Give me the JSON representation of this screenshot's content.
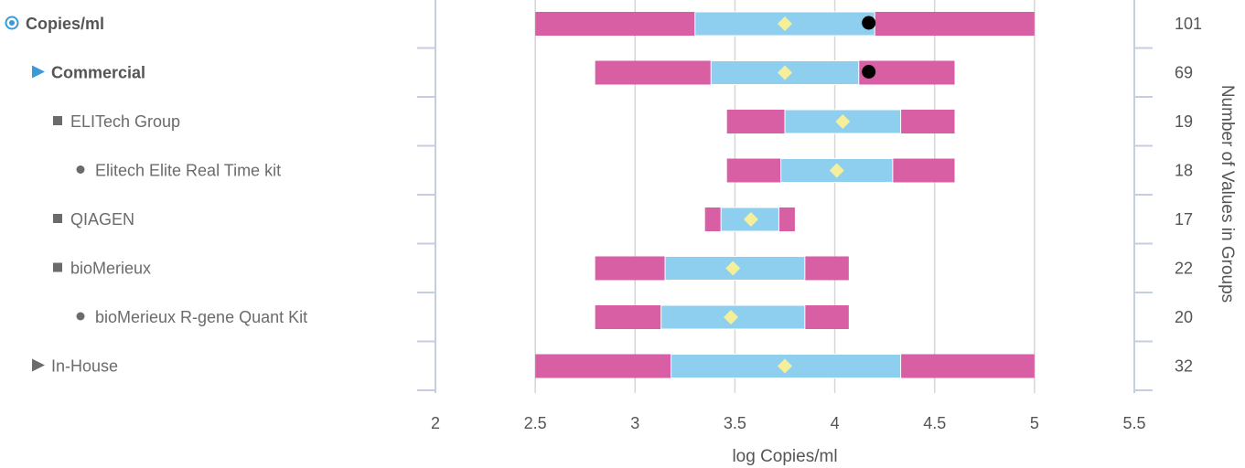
{
  "chart_data": {
    "type": "box",
    "orientation": "horizontal",
    "xlabel": "log Copies/ml",
    "y2label": "Number of Values in Groups",
    "xlim": [
      2,
      5.5
    ],
    "xticks": [
      2,
      2.5,
      3,
      3.5,
      4,
      4.5,
      5,
      5.5
    ],
    "xtick_labels": [
      "2",
      "2.5",
      "3",
      "3.5",
      "4",
      "4.5",
      "5",
      "5.5"
    ],
    "grid": "vertical",
    "colors": {
      "whisker_range": "#d95fa5",
      "interquartile": "#8ecff0",
      "mean_marker": "#f5ef9a",
      "highlight_point": "#000000",
      "grid": "#d6d6d6",
      "axis": "#c5cde0",
      "bullet_blue": "#3a9ad9"
    },
    "rows": [
      {
        "label": "Copies/ml",
        "level": 0,
        "bullet": "circle",
        "bold": true,
        "min": 2.5,
        "q1": 3.3,
        "q3": 4.2,
        "max": 5.0,
        "mean": 3.75,
        "point": 4.17,
        "count": "101"
      },
      {
        "label": "Commercial",
        "level": 1,
        "bullet": "triangle",
        "bold": true,
        "min": 2.8,
        "q1": 3.38,
        "q3": 4.12,
        "max": 4.6,
        "mean": 3.75,
        "point": 4.17,
        "count": "69"
      },
      {
        "label": "ELITech Group",
        "level": 2,
        "bullet": "square",
        "bold": false,
        "min": 3.46,
        "q1": 3.75,
        "q3": 4.33,
        "max": 4.6,
        "mean": 4.04,
        "count": "19"
      },
      {
        "label": "Elitech Elite Real Time kit",
        "level": 3,
        "bullet": "dot",
        "bold": false,
        "min": 3.46,
        "q1": 3.73,
        "q3": 4.29,
        "max": 4.6,
        "mean": 4.01,
        "count": "18"
      },
      {
        "label": "QIAGEN",
        "level": 2,
        "bullet": "square",
        "bold": false,
        "min": 3.35,
        "q1": 3.43,
        "q3": 3.72,
        "max": 3.8,
        "mean": 3.58,
        "count": "17"
      },
      {
        "label": "bioMerieux",
        "level": 2,
        "bullet": "square",
        "bold": false,
        "min": 2.8,
        "q1": 3.15,
        "q3": 3.85,
        "max": 4.07,
        "mean": 3.49,
        "count": "22"
      },
      {
        "label": "bioMerieux R-gene Quant Kit",
        "level": 3,
        "bullet": "dot",
        "bold": false,
        "min": 2.8,
        "q1": 3.13,
        "q3": 3.85,
        "max": 4.07,
        "mean": 3.48,
        "count": "20"
      },
      {
        "label": "In-House",
        "level": 1,
        "bullet": "triangle-gray",
        "bold": false,
        "min": 2.5,
        "q1": 3.18,
        "q3": 4.33,
        "max": 5.0,
        "mean": 3.75,
        "count": "32"
      }
    ]
  }
}
